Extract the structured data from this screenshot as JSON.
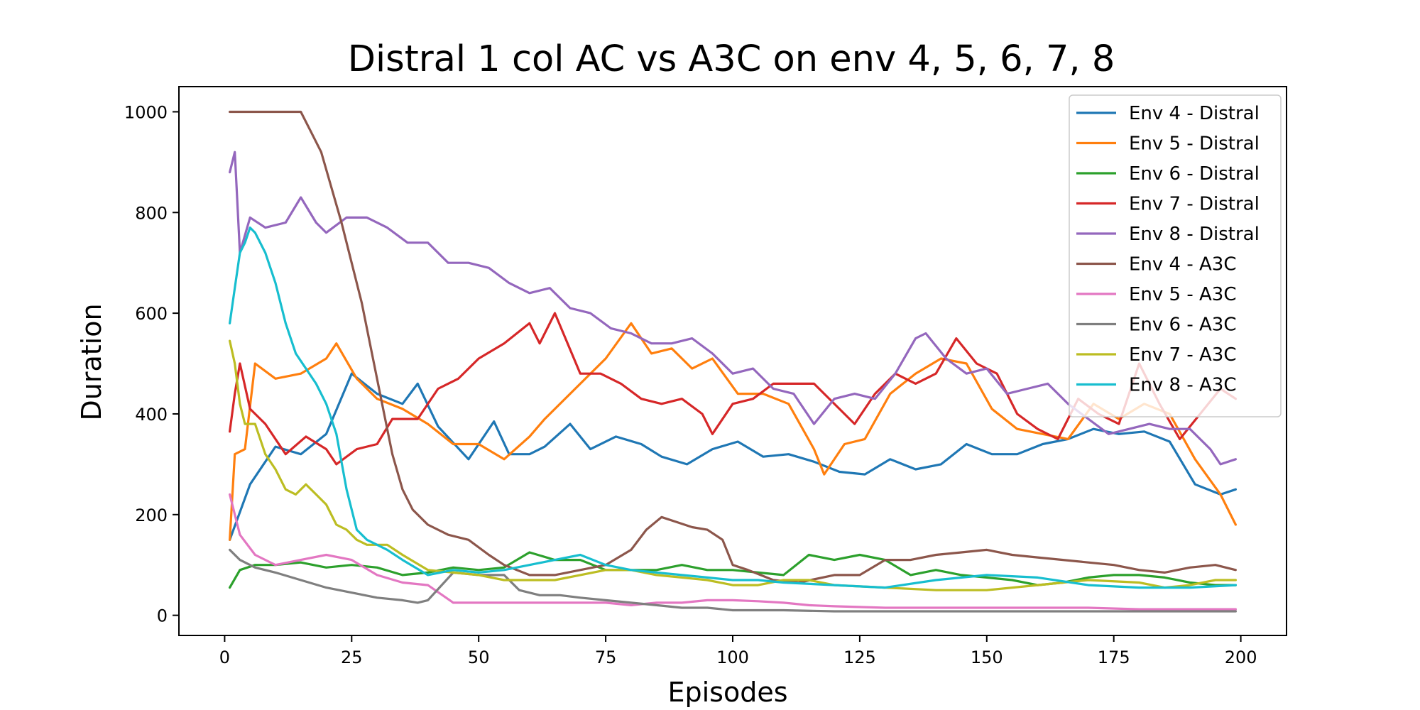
{
  "chart_data": {
    "type": "line",
    "title": "Distral 1 col AC vs A3C on env 4, 5, 6, 7, 8",
    "xlabel": "Episodes",
    "ylabel": "Duration",
    "xlim": [
      -9,
      209
    ],
    "ylim": [
      -40,
      1050
    ],
    "xticks": [
      0,
      25,
      50,
      75,
      100,
      125,
      150,
      175,
      200
    ],
    "yticks": [
      0,
      200,
      400,
      600,
      800,
      1000
    ],
    "grid": false,
    "legend": "top-right",
    "series": [
      {
        "name": "Env 4 - Distral",
        "color": "#1f77b4",
        "x": [
          1,
          5,
          10,
          15,
          20,
          25,
          30,
          35,
          38,
          42,
          48,
          53,
          56,
          60,
          63,
          68,
          72,
          77,
          82,
          86,
          91,
          96,
          101,
          106,
          111,
          116,
          121,
          126,
          131,
          136,
          141,
          146,
          151,
          156,
          161,
          166,
          171,
          176,
          181,
          186,
          191,
          196,
          199
        ],
        "y": [
          150,
          260,
          335,
          320,
          360,
          480,
          440,
          420,
          460,
          375,
          310,
          385,
          320,
          320,
          335,
          380,
          330,
          355,
          340,
          315,
          300,
          330,
          345,
          315,
          320,
          305,
          285,
          280,
          310,
          290,
          300,
          340,
          320,
          320,
          340,
          350,
          370,
          360,
          365,
          345,
          260,
          240,
          250
        ]
      },
      {
        "name": "Env 5 - Distral",
        "color": "#ff7f0e",
        "x": [
          1,
          2,
          4,
          6,
          10,
          15,
          20,
          22,
          26,
          30,
          35,
          40,
          45,
          50,
          55,
          60,
          63,
          68,
          72,
          75,
          80,
          84,
          88,
          92,
          96,
          101,
          106,
          111,
          116,
          118,
          122,
          126,
          131,
          136,
          141,
          146,
          151,
          156,
          161,
          166,
          171,
          176,
          181,
          186,
          191,
          196,
          199
        ],
        "y": [
          150,
          320,
          330,
          500,
          470,
          480,
          510,
          540,
          470,
          430,
          410,
          380,
          340,
          340,
          310,
          355,
          390,
          440,
          480,
          510,
          580,
          520,
          530,
          490,
          510,
          440,
          440,
          420,
          330,
          280,
          340,
          350,
          440,
          480,
          510,
          500,
          410,
          370,
          360,
          350,
          420,
          390,
          420,
          400,
          310,
          240,
          180
        ]
      },
      {
        "name": "Env 6 - Distral",
        "color": "#2ca02c",
        "x": [
          1,
          3,
          6,
          10,
          15,
          20,
          25,
          30,
          35,
          40,
          45,
          50,
          55,
          60,
          65,
          70,
          75,
          80,
          85,
          90,
          95,
          100,
          105,
          110,
          115,
          120,
          125,
          130,
          135,
          140,
          145,
          150,
          155,
          160,
          165,
          170,
          175,
          180,
          185,
          190,
          195,
          199
        ],
        "y": [
          55,
          90,
          100,
          100,
          105,
          95,
          100,
          95,
          80,
          85,
          95,
          90,
          95,
          125,
          110,
          110,
          90,
          90,
          90,
          100,
          90,
          90,
          85,
          80,
          120,
          110,
          120,
          110,
          80,
          90,
          80,
          75,
          70,
          60,
          65,
          75,
          80,
          80,
          75,
          65,
          60,
          60
        ]
      },
      {
        "name": "Env 7 - Distral",
        "color": "#d62728",
        "x": [
          1,
          2,
          3,
          5,
          8,
          12,
          16,
          20,
          22,
          26,
          30,
          33,
          38,
          42,
          46,
          50,
          55,
          60,
          62,
          65,
          70,
          74,
          78,
          82,
          86,
          90,
          94,
          96,
          100,
          104,
          108,
          112,
          116,
          120,
          124,
          128,
          132,
          136,
          140,
          144,
          148,
          152,
          156,
          160,
          164,
          168,
          172,
          176,
          180,
          184,
          188,
          192,
          196,
          199
        ],
        "y": [
          365,
          440,
          500,
          410,
          380,
          320,
          355,
          330,
          300,
          330,
          340,
          390,
          390,
          450,
          470,
          510,
          540,
          580,
          540,
          600,
          480,
          480,
          460,
          430,
          420,
          430,
          400,
          360,
          420,
          430,
          460,
          460,
          460,
          420,
          380,
          440,
          480,
          460,
          480,
          550,
          500,
          480,
          400,
          370,
          350,
          430,
          400,
          380,
          500,
          420,
          350,
          400,
          450,
          430
        ]
      },
      {
        "name": "Env 8 - Distral",
        "color": "#9467bd",
        "x": [
          1,
          2,
          3,
          5,
          8,
          12,
          15,
          18,
          20,
          24,
          28,
          32,
          36,
          40,
          44,
          48,
          52,
          56,
          60,
          64,
          68,
          72,
          76,
          80,
          84,
          88,
          92,
          96,
          100,
          104,
          108,
          112,
          116,
          120,
          124,
          128,
          132,
          136,
          138,
          142,
          146,
          150,
          154,
          158,
          162,
          166,
          170,
          174,
          178,
          182,
          186,
          190,
          194,
          196,
          199
        ],
        "y": [
          880,
          920,
          720,
          790,
          770,
          780,
          830,
          780,
          760,
          790,
          790,
          770,
          740,
          740,
          700,
          700,
          690,
          660,
          640,
          650,
          610,
          600,
          570,
          560,
          540,
          540,
          550,
          520,
          480,
          490,
          450,
          440,
          380,
          430,
          440,
          430,
          480,
          550,
          560,
          510,
          480,
          490,
          440,
          450,
          460,
          420,
          390,
          360,
          370,
          380,
          370,
          370,
          330,
          300,
          310
        ]
      },
      {
        "name": "Env 4 - A3C",
        "color": "#8c564b",
        "x": [
          1,
          5,
          10,
          15,
          17,
          19,
          21,
          23,
          25,
          27,
          29,
          31,
          33,
          35,
          37,
          40,
          44,
          48,
          52,
          55,
          60,
          65,
          70,
          75,
          80,
          83,
          86,
          89,
          92,
          95,
          98,
          100,
          103,
          108,
          113,
          120,
          125,
          130,
          135,
          140,
          145,
          150,
          155,
          160,
          165,
          170,
          175,
          180,
          185,
          190,
          195,
          199
        ],
        "y": [
          1000,
          1000,
          1000,
          1000,
          960,
          920,
          850,
          780,
          700,
          620,
          520,
          420,
          320,
          250,
          210,
          180,
          160,
          150,
          120,
          100,
          80,
          80,
          90,
          100,
          130,
          170,
          195,
          185,
          175,
          170,
          150,
          100,
          90,
          70,
          65,
          80,
          80,
          110,
          110,
          120,
          125,
          130,
          120,
          115,
          110,
          105,
          100,
          90,
          85,
          95,
          100,
          90
        ]
      },
      {
        "name": "Env 5 - A3C",
        "color": "#e377c2",
        "x": [
          1,
          3,
          6,
          10,
          15,
          20,
          25,
          30,
          35,
          40,
          45,
          50,
          55,
          60,
          65,
          70,
          75,
          80,
          85,
          90,
          95,
          100,
          105,
          110,
          115,
          120,
          130,
          140,
          150,
          160,
          170,
          180,
          190,
          199
        ],
        "y": [
          240,
          160,
          120,
          100,
          110,
          120,
          110,
          80,
          65,
          60,
          25,
          25,
          25,
          25,
          25,
          25,
          25,
          20,
          25,
          25,
          30,
          30,
          28,
          25,
          20,
          18,
          15,
          15,
          15,
          15,
          15,
          12,
          12,
          12
        ]
      },
      {
        "name": "Env 6 - A3C",
        "color": "#7f7f7f",
        "x": [
          1,
          3,
          6,
          10,
          15,
          20,
          25,
          30,
          35,
          38,
          40,
          45,
          50,
          55,
          58,
          62,
          66,
          70,
          75,
          80,
          85,
          90,
          95,
          100,
          105,
          110,
          120,
          130,
          140,
          150,
          160,
          170,
          180,
          190,
          199
        ],
        "y": [
          130,
          110,
          95,
          85,
          70,
          55,
          45,
          35,
          30,
          25,
          30,
          85,
          80,
          80,
          50,
          40,
          40,
          35,
          30,
          25,
          20,
          15,
          15,
          10,
          10,
          10,
          8,
          8,
          8,
          8,
          8,
          8,
          8,
          8,
          8
        ]
      },
      {
        "name": "Env 7 - A3C",
        "color": "#bcbd22",
        "x": [
          1,
          2,
          3,
          4,
          6,
          8,
          10,
          12,
          14,
          16,
          18,
          20,
          22,
          24,
          26,
          28,
          30,
          32,
          35,
          40,
          45,
          50,
          55,
          60,
          65,
          70,
          75,
          80,
          85,
          90,
          95,
          100,
          105,
          110,
          115,
          120,
          130,
          140,
          150,
          160,
          170,
          180,
          185,
          190,
          195,
          199
        ],
        "y": [
          545,
          500,
          420,
          380,
          380,
          320,
          290,
          250,
          240,
          260,
          240,
          220,
          180,
          170,
          150,
          140,
          140,
          140,
          120,
          90,
          85,
          80,
          70,
          70,
          70,
          80,
          90,
          90,
          80,
          75,
          70,
          60,
          60,
          70,
          70,
          60,
          55,
          50,
          50,
          60,
          70,
          65,
          55,
          60,
          70,
          70
        ]
      },
      {
        "name": "Env 8 - A3C",
        "color": "#17becf",
        "x": [
          1,
          2,
          3,
          4,
          5,
          6,
          8,
          10,
          12,
          14,
          16,
          18,
          20,
          22,
          24,
          26,
          28,
          30,
          32,
          35,
          40,
          45,
          50,
          55,
          60,
          65,
          70,
          75,
          80,
          85,
          90,
          95,
          100,
          105,
          110,
          120,
          130,
          140,
          150,
          160,
          170,
          180,
          190,
          199
        ],
        "y": [
          580,
          650,
          720,
          740,
          770,
          760,
          720,
          660,
          580,
          520,
          490,
          460,
          420,
          360,
          250,
          170,
          150,
          140,
          130,
          110,
          80,
          90,
          85,
          90,
          100,
          110,
          120,
          100,
          90,
          85,
          80,
          75,
          70,
          70,
          65,
          60,
          55,
          70,
          80,
          75,
          60,
          55,
          55,
          60
        ]
      }
    ]
  }
}
